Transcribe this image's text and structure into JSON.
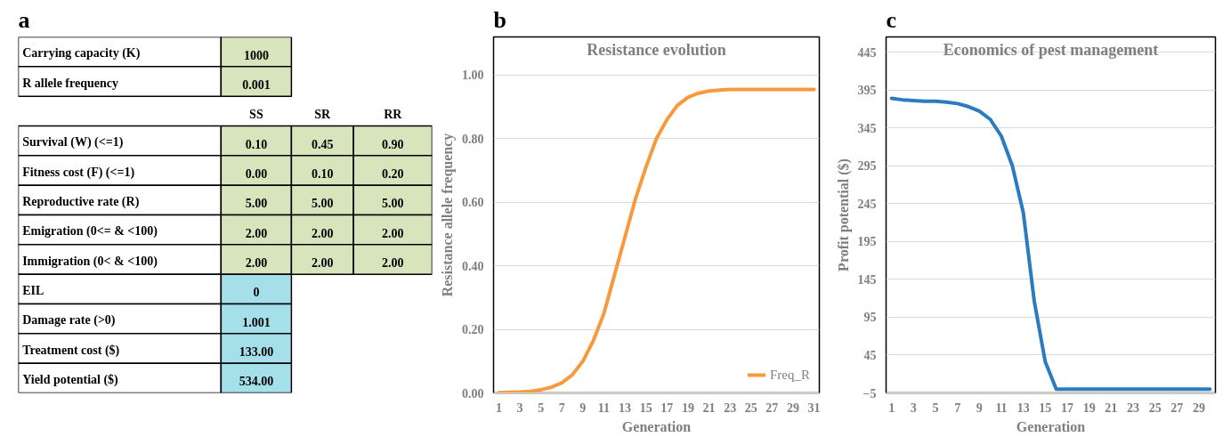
{
  "chart_data": [
    {
      "type": "other",
      "annotations": [
        "a"
      ],
      "y_categories": [
        "Carrying capacity (K)",
        "R allele frequency",
        null,
        "Survival (W) (<=1)",
        "Fitness cost (F) (<=1)",
        "Reproductive rate (R)",
        "Emigration (0<= & <100)",
        "Immigration (0< & <100)",
        "EIL",
        "Damage rate (>0)",
        "Treatment cost ($)",
        "Yield potential ($)"
      ],
      "cell_labels": [
        [
          "1000",
          null,
          null
        ],
        [
          "0.001",
          null,
          null
        ],
        [
          "SS",
          "SR",
          "RR"
        ],
        [
          "0.10",
          "0.45",
          "0.90"
        ],
        [
          "0.00",
          "0.10",
          "0.20"
        ],
        [
          "5.00",
          "5.00",
          "5.00"
        ],
        [
          "2.00",
          "2.00",
          "2.00"
        ],
        [
          "2.00",
          "2.00",
          "2.00"
        ],
        [
          "0",
          null,
          null
        ],
        [
          "1.001",
          null,
          null
        ],
        [
          "133.00",
          null,
          null
        ],
        [
          "534.00",
          null,
          null
        ]
      ],
      "colors": [
        "#d8e4bc",
        "#d8e4bc",
        null,
        "#d8e4bc",
        "#d8e4bc",
        "#d8e4bc",
        "#d8e4bc",
        "#d8e4bc",
        "#a5dfea",
        "#a5dfea",
        "#a5dfea",
        "#a5dfea"
      ]
    },
    {
      "type": "line",
      "annotations": [
        "b"
      ],
      "title": "Resistance evolution",
      "xlabel": "Generation",
      "ylabel": "Resistance allele frequency",
      "x": [
        1,
        2,
        3,
        4,
        5,
        6,
        7,
        8,
        9,
        10,
        11,
        12,
        13,
        14,
        15,
        16,
        17,
        18,
        19,
        20,
        21,
        22,
        23,
        24,
        25,
        26,
        27,
        28,
        29,
        30,
        31
      ],
      "series": [
        {
          "name": "Freq_R",
          "color": "#f79a3e",
          "values": [
            0.001,
            0.002,
            0.003,
            0.005,
            0.01,
            0.018,
            0.032,
            0.057,
            0.1,
            0.165,
            0.25,
            0.37,
            0.49,
            0.61,
            0.71,
            0.8,
            0.86,
            0.905,
            0.93,
            0.943,
            0.95,
            0.953,
            0.955,
            0.955,
            0.955,
            0.955,
            0.955,
            0.955,
            0.955,
            0.955,
            0.955
          ]
        }
      ],
      "xlim": [
        0.5,
        31.5
      ],
      "ylim": [
        0,
        1.12
      ],
      "xticks": [
        1,
        3,
        5,
        7,
        9,
        11,
        13,
        15,
        17,
        19,
        21,
        23,
        25,
        27,
        29,
        31
      ],
      "yticks": [
        {
          "value": 0,
          "label": "0.00"
        },
        {
          "value": 0.2,
          "label": "0.20"
        },
        {
          "value": 0.4,
          "label": "0.40"
        },
        {
          "value": 0.6,
          "label": "0.60"
        },
        {
          "value": 0.8,
          "label": "0.80"
        },
        {
          "value": 1,
          "label": "1.00"
        }
      ],
      "grid": "y",
      "legend": "bottom right",
      "line_style": "solid",
      "marker": "none"
    },
    {
      "type": "line",
      "annotations": [
        "c"
      ],
      "title": "Economics of pest management",
      "xlabel": "Generation",
      "ylabel": "Profit potential ($)",
      "x": [
        1,
        2,
        3,
        4,
        5,
        6,
        7,
        8,
        9,
        10,
        11,
        12,
        13,
        14,
        15,
        16,
        17,
        18,
        19,
        20,
        21,
        22,
        23,
        24,
        25,
        26,
        27,
        28,
        29,
        30
      ],
      "series": [
        {
          "color": "#2a7bbf",
          "values": [
            384,
            382,
            381,
            380,
            380,
            379,
            377,
            373,
            367,
            356,
            334,
            295,
            233,
            116,
            36,
            0,
            0,
            0,
            0,
            0,
            0,
            0,
            0,
            0,
            0,
            0,
            0,
            0,
            0,
            0
          ]
        }
      ],
      "xlim": [
        0.5,
        30.5
      ],
      "ylim": [
        -5,
        465
      ],
      "xticks": [
        1,
        3,
        5,
        7,
        9,
        11,
        13,
        15,
        17,
        19,
        21,
        23,
        25,
        27,
        29
      ],
      "yticks": [
        -5,
        45,
        95,
        145,
        195,
        245,
        295,
        345,
        395,
        445
      ],
      "grid": "y",
      "line_style": "solid",
      "marker": "none"
    }
  ]
}
